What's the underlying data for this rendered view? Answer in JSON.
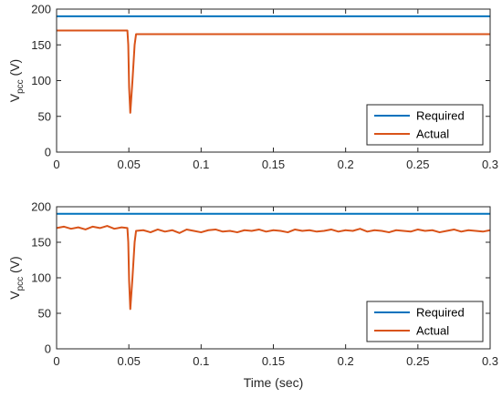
{
  "chart_data": [
    {
      "type": "line",
      "xlim": [
        0,
        0.3
      ],
      "ylim": [
        0,
        200
      ],
      "xticks": [
        "0",
        "0.05",
        "0.1",
        "0.15",
        "0.2",
        "0.25",
        "0.3"
      ],
      "yticks": [
        "0",
        "50",
        "100",
        "150",
        "200"
      ],
      "ylabel": {
        "main": "V",
        "sub": "pcc",
        "unit": " (V)"
      },
      "xlabel": "",
      "grid": false,
      "legend_position": "bottom-right",
      "series": [
        {
          "name": "Required",
          "color": "#0072BD",
          "x": [
            0,
            0.3
          ],
          "y": [
            190,
            190
          ]
        },
        {
          "name": "Actual",
          "color": "#D95319",
          "x": [
            0,
            0.049,
            0.0496,
            0.0502,
            0.051,
            0.0525,
            0.054,
            0.055,
            0.056,
            0.3
          ],
          "y": [
            170,
            170,
            150,
            90,
            55,
            100,
            150,
            165,
            165,
            165
          ]
        }
      ]
    },
    {
      "type": "line",
      "xlim": [
        0,
        0.3
      ],
      "ylim": [
        0,
        200
      ],
      "xticks": [
        "0",
        "0.05",
        "0.1",
        "0.15",
        "0.2",
        "0.25",
        "0.3"
      ],
      "yticks": [
        "0",
        "50",
        "100",
        "150",
        "200"
      ],
      "ylabel": {
        "main": "V",
        "sub": "pcc",
        "unit": " (V)"
      },
      "xlabel": "Time (sec)",
      "grid": false,
      "legend_position": "bottom-right",
      "series": [
        {
          "name": "Required",
          "color": "#0072BD",
          "x": [
            0,
            0.3
          ],
          "y": [
            190,
            190
          ]
        },
        {
          "name": "Actual",
          "color": "#D95319",
          "x": [
            0,
            0.005,
            0.01,
            0.015,
            0.02,
            0.025,
            0.03,
            0.035,
            0.04,
            0.045,
            0.049,
            0.0496,
            0.0502,
            0.051,
            0.0525,
            0.054,
            0.055,
            0.06,
            0.065,
            0.07,
            0.075,
            0.08,
            0.085,
            0.09,
            0.095,
            0.1,
            0.105,
            0.11,
            0.115,
            0.12,
            0.125,
            0.13,
            0.135,
            0.14,
            0.145,
            0.15,
            0.155,
            0.16,
            0.165,
            0.17,
            0.175,
            0.18,
            0.185,
            0.19,
            0.195,
            0.2,
            0.205,
            0.21,
            0.215,
            0.22,
            0.225,
            0.23,
            0.235,
            0.24,
            0.245,
            0.25,
            0.255,
            0.26,
            0.265,
            0.27,
            0.275,
            0.28,
            0.285,
            0.29,
            0.295,
            0.3
          ],
          "y": [
            170,
            172,
            169,
            171,
            168,
            172,
            170,
            173,
            169,
            171,
            170,
            150,
            95,
            56,
            100,
            150,
            166,
            167,
            164,
            168,
            165,
            167,
            163,
            168,
            166,
            164,
            167,
            168,
            165,
            166,
            164,
            167,
            166,
            168,
            165,
            167,
            166,
            164,
            168,
            166,
            167,
            165,
            166,
            168,
            165,
            167,
            166,
            169,
            165,
            167,
            166,
            164,
            167,
            166,
            165,
            168,
            166,
            167,
            164,
            166,
            168,
            165,
            167,
            166,
            165,
            167
          ]
        }
      ]
    }
  ]
}
